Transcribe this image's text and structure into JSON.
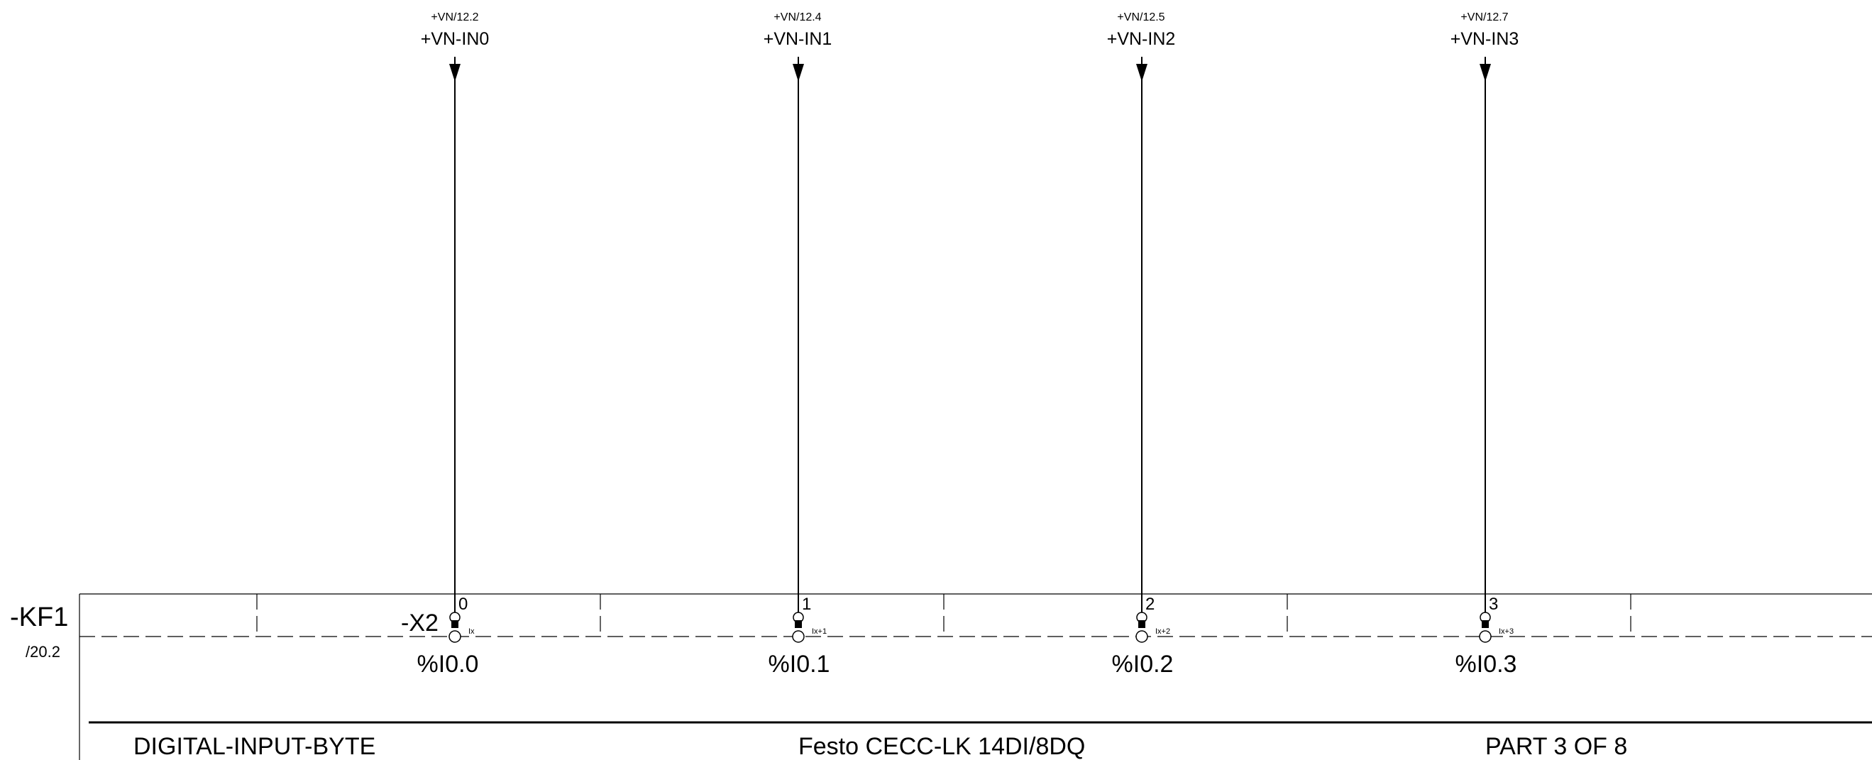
{
  "device": {
    "tag": "-KF1",
    "ref": "/20.2"
  },
  "connector": {
    "tag": "-X2"
  },
  "channels": [
    {
      "crossref": "+VN/12.2",
      "signal": "+VN-IN0",
      "pin": "0",
      "sub": "Ix",
      "address": "%I0.0"
    },
    {
      "crossref": "+VN/12.4",
      "signal": "+VN-IN1",
      "pin": "1",
      "sub": "Ix+1",
      "address": "%I0.1"
    },
    {
      "crossref": "+VN/12.5",
      "signal": "+VN-IN2",
      "pin": "2",
      "sub": "Ix+2",
      "address": "%I0.2"
    },
    {
      "crossref": "+VN/12.7",
      "signal": "+VN-IN3",
      "pin": "3",
      "sub": "Ix+3",
      "address": "%I0.3"
    }
  ],
  "footer": {
    "left": "DIGITAL-INPUT-BYTE",
    "center": "Festo CECC-LK 14DI/8DQ",
    "right": "PART 3 OF 8"
  }
}
